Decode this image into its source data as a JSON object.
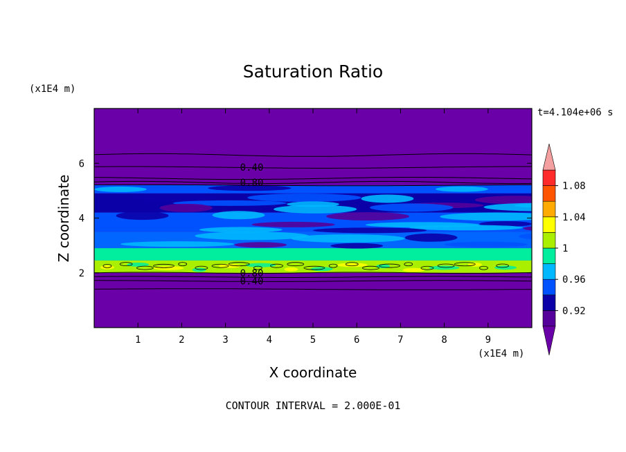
{
  "chart_data": {
    "type": "heatmap",
    "title": "Saturation Ratio",
    "xlabel": "X coordinate",
    "ylabel": "Z coordinate",
    "x_unit": "(x1E4 m)",
    "y_unit": "(x1E4 m)",
    "time_label": "t=4.104e+06 s",
    "footer": "CONTOUR INTERVAL = 2.000E-01",
    "xlim": [
      0,
      10
    ],
    "ylim": [
      0,
      8
    ],
    "x_ticks": [
      "1",
      "2",
      "3",
      "4",
      "5",
      "6",
      "7",
      "8",
      "9"
    ],
    "y_ticks": [
      "2",
      "4",
      "6"
    ],
    "contour_labels": [
      {
        "text": "0.40",
        "x": 3.6,
        "z": 5.85
      },
      {
        "text": "0.80",
        "x": 3.6,
        "z": 5.3
      },
      {
        "text": "0.80",
        "x": 3.6,
        "z": 2.0
      },
      {
        "text": "0.40",
        "x": 3.6,
        "z": 1.7
      }
    ],
    "colorbar": {
      "tick_labels": [
        "1.08",
        "1.04",
        "1",
        "0.96",
        "0.92"
      ],
      "tick_values": [
        1.08,
        1.04,
        1.0,
        0.96,
        0.92
      ],
      "bins": [
        {
          "min": 0.9,
          "max": 0.92,
          "color": "#55009a"
        },
        {
          "min": 0.92,
          "max": 0.94,
          "color": "#0b00a8"
        },
        {
          "min": 0.94,
          "max": 0.96,
          "color": "#0052ff"
        },
        {
          "min": 0.96,
          "max": 0.98,
          "color": "#00b8ff"
        },
        {
          "min": 0.98,
          "max": 1.0,
          "color": "#00ee9e"
        },
        {
          "min": 1.0,
          "max": 1.02,
          "color": "#aaee00"
        },
        {
          "min": 1.02,
          "max": 1.04,
          "color": "#ffff00"
        },
        {
          "min": 1.04,
          "max": 1.06,
          "color": "#ffaa00"
        },
        {
          "min": 1.06,
          "max": 1.08,
          "color": "#ff5500"
        },
        {
          "min": 1.08,
          "max": 1.1,
          "color": "#ff2a2a"
        }
      ],
      "under_color": "#6a00a8",
      "over_color": "#f4a0a0"
    },
    "background_color": "#6a00a8",
    "layers": [
      {
        "z_min": 5.2,
        "z_max": 5.45,
        "color": "#6a00a8"
      },
      {
        "z_min": 4.9,
        "z_max": 5.2,
        "color": "#0052ff"
      },
      {
        "z_min": 4.2,
        "z_max": 4.9,
        "color": "#0b00a8"
      },
      {
        "z_min": 3.5,
        "z_max": 4.2,
        "color": "#0052ff"
      },
      {
        "z_min": 2.9,
        "z_max": 3.5,
        "color": "#0066ff"
      },
      {
        "z_min": 2.45,
        "z_max": 2.9,
        "color": "#00ee9e"
      },
      {
        "z_min": 2.0,
        "z_max": 2.45,
        "color": "#aaee00"
      }
    ]
  }
}
